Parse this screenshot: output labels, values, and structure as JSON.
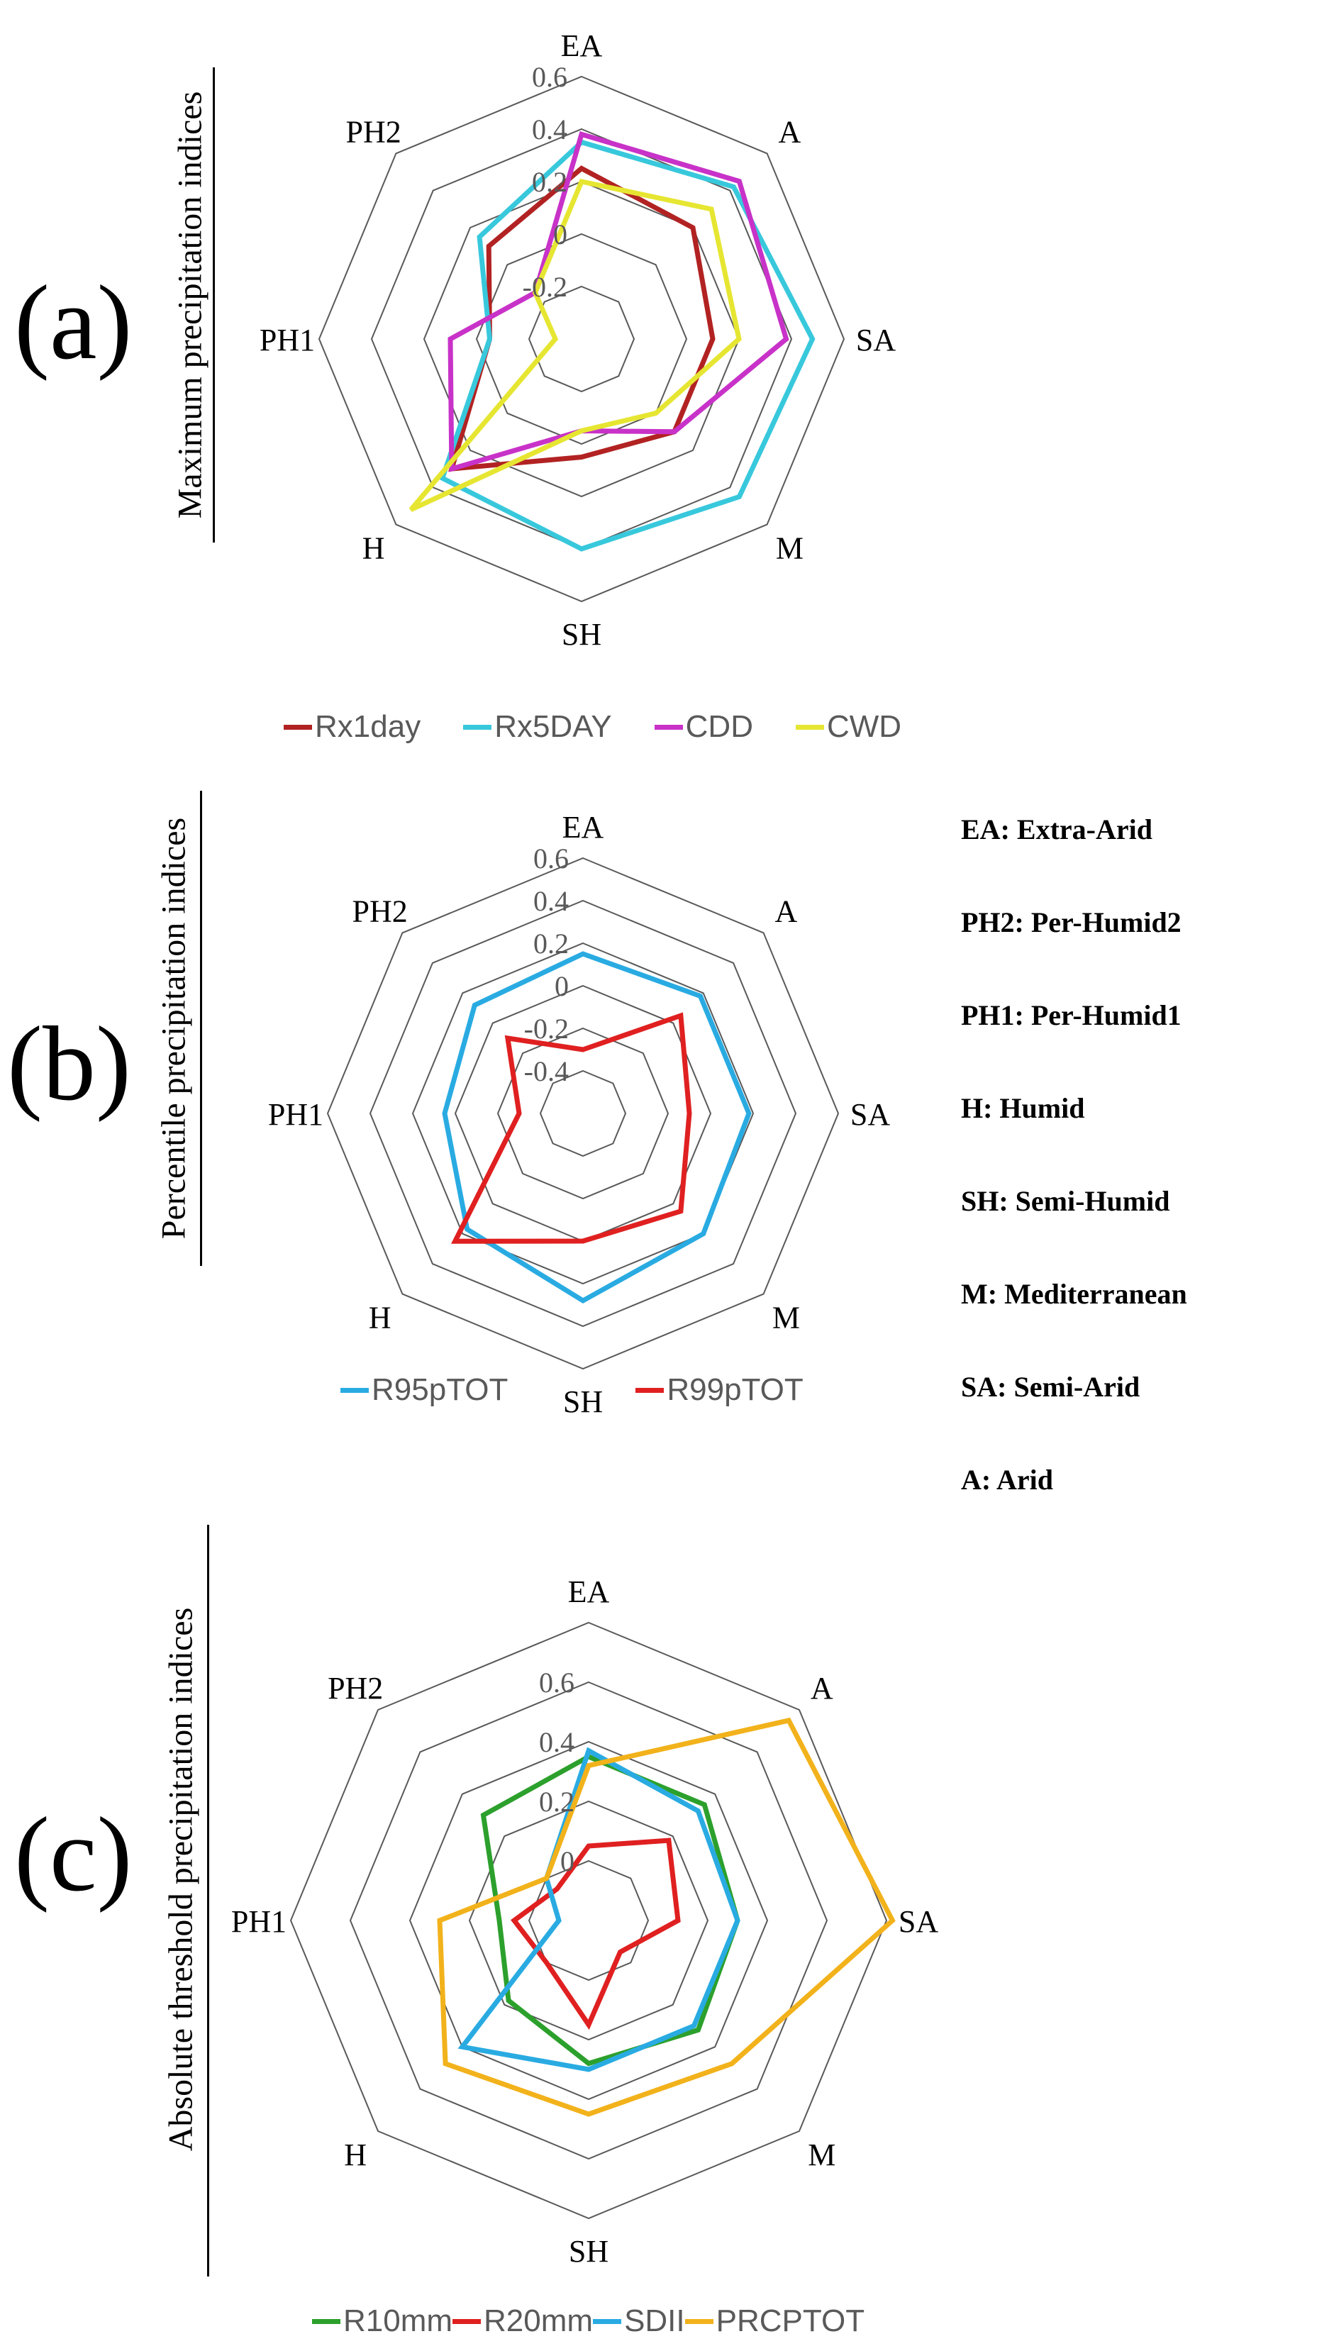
{
  "chart_data": [
    {
      "type": "radar",
      "panel": "(a)",
      "ylabel": "Maximum precipitation indices",
      "axes": [
        "EA",
        "A",
        "SA",
        "M",
        "SH",
        "H",
        "PH1",
        "PH2"
      ],
      "rlim": [
        -0.4,
        0.6
      ],
      "ticks": [
        "0.6",
        "0.4",
        "0.2",
        "0",
        "-0.2"
      ],
      "tick_values": [
        0.6,
        0.4,
        0.2,
        0,
        -0.2
      ],
      "series": [
        {
          "name": "Rx1day",
          "color": "#b22222",
          "values": [
            0.25,
            0.2,
            0.1,
            0.1,
            0.05,
            0.3,
            -0.05,
            0.1
          ]
        },
        {
          "name": "Rx5DAY",
          "color": "#38c8dc",
          "values": [
            0.35,
            0.42,
            0.48,
            0.45,
            0.4,
            0.35,
            -0.05,
            0.15
          ]
        },
        {
          "name": "CDD",
          "color": "#c832c8",
          "values": [
            0.38,
            0.45,
            0.38,
            0.1,
            -0.05,
            0.3,
            0.1,
            -0.15
          ]
        },
        {
          "name": "CWD",
          "color": "#e6e632",
          "values": [
            0.2,
            0.3,
            0.2,
            0.0,
            -0.05,
            0.52,
            -0.3,
            -0.15
          ]
        }
      ]
    },
    {
      "type": "radar",
      "panel": "(b)",
      "ylabel": "Percentile precipitation indices",
      "axes": [
        "EA",
        "A",
        "SA",
        "M",
        "SH",
        "H",
        "PH1",
        "PH2"
      ],
      "rlim": [
        -0.6,
        0.6
      ],
      "ticks": [
        "0.6",
        "0.4",
        "0.2",
        "0",
        "-0.2",
        "-0.4"
      ],
      "tick_values": [
        0.6,
        0.4,
        0.2,
        0,
        -0.2,
        -0.4
      ],
      "series": [
        {
          "name": "R95pTOT",
          "color": "#29abe2",
          "values": [
            0.15,
            0.18,
            0.18,
            0.2,
            0.28,
            0.17,
            0.05,
            0.12
          ]
        },
        {
          "name": "R99pTOT",
          "color": "#e02020",
          "values": [
            -0.3,
            0.05,
            -0.1,
            0.05,
            0.0,
            0.25,
            -0.3,
            -0.1
          ]
        }
      ]
    },
    {
      "type": "radar",
      "panel": "(c)",
      "ylabel": "Absolute threshold precipitation indices",
      "axes": [
        "EA",
        "A",
        "SA",
        "M",
        "SH",
        "H",
        "PH1",
        "PH2"
      ],
      "rlim": [
        -0.2,
        0.8
      ],
      "ticks": [
        "0.6",
        "0.4",
        "0.2",
        "0"
      ],
      "tick_values": [
        0.6,
        0.4,
        0.2,
        0
      ],
      "series": [
        {
          "name": "R10mm",
          "color": "#2ca02c",
          "values": [
            0.35,
            0.35,
            0.3,
            0.32,
            0.28,
            0.18,
            0.1,
            0.3
          ]
        },
        {
          "name": "R20mm",
          "color": "#e02020",
          "values": [
            0.05,
            0.18,
            0.1,
            -0.05,
            0.15,
            0.0,
            0.05,
            -0.05
          ]
        },
        {
          "name": "SDII",
          "color": "#29abe2",
          "values": [
            0.37,
            0.32,
            0.3,
            0.3,
            0.3,
            0.4,
            -0.1,
            0.0
          ]
        },
        {
          "name": "PRCPTOT",
          "color": "#f2b21b",
          "values": [
            0.32,
            0.75,
            0.82,
            0.48,
            0.45,
            0.48,
            0.3,
            0.0
          ]
        }
      ]
    }
  ],
  "glossary": [
    "EA: Extra-Arid",
    "PH2: Per-Humid2",
    "PH1: Per-Humid1",
    "H: Humid",
    "SH: Semi-Humid",
    "M: Mediterranean",
    "SA: Semi-Arid",
    "A: Arid"
  ]
}
